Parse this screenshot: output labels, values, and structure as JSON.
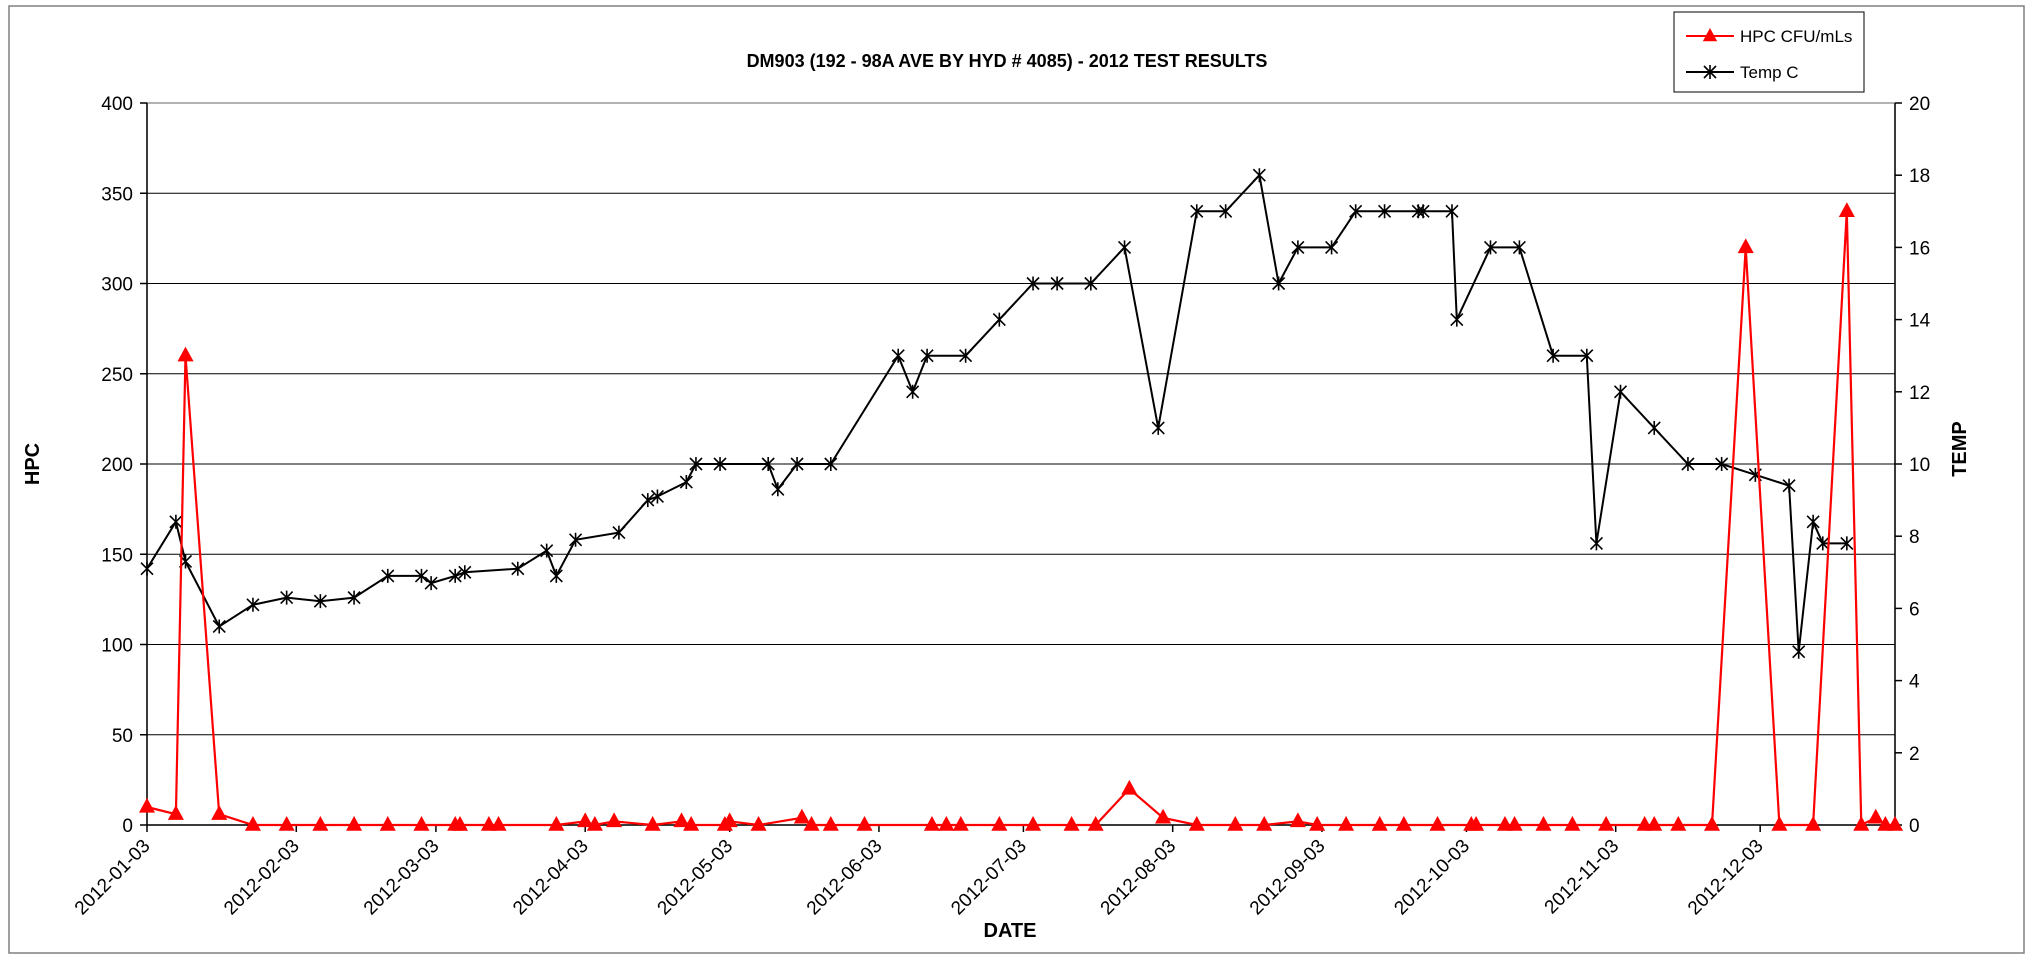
{
  "chart_data": {
    "type": "line",
    "title": "DM903 (192 - 98A AVE BY HYD # 4085) - 2012 TEST RESULTS",
    "xlabel": "DATE",
    "ylabel": "HPC",
    "y2label": "TEMP",
    "ylim": [
      0,
      400
    ],
    "y2lim": [
      0,
      20
    ],
    "yticks": [
      "0",
      "50",
      "100",
      "150",
      "200",
      "250",
      "300",
      "350",
      "400"
    ],
    "y2ticks": [
      "0",
      "2",
      "4",
      "6",
      "8",
      "10",
      "12",
      "14",
      "16",
      "18",
      "20"
    ],
    "xlim": [
      "2012-01-03",
      "2012-12-31"
    ],
    "xticks": [
      "2012-01-03",
      "2012-02-03",
      "2012-03-03",
      "2012-04-03",
      "2012-05-03",
      "2012-06-03",
      "2012-07-03",
      "2012-08-03",
      "2012-09-03",
      "2012-10-03",
      "2012-11-03",
      "2012-12-03"
    ],
    "grid": true,
    "legend_position": "top-right",
    "colors": {
      "hpc": "#ff0000",
      "temp": "#000000"
    },
    "series": [
      {
        "name": "HPC CFU/mLs",
        "axis": "left",
        "marker": "triangle",
        "color": "#ff0000",
        "points": [
          [
            "2012-01-03",
            10
          ],
          [
            "2012-01-09",
            6
          ],
          [
            "2012-01-11",
            260
          ],
          [
            "2012-01-18",
            6
          ],
          [
            "2012-01-25",
            0
          ],
          [
            "2012-02-01",
            0
          ],
          [
            "2012-02-08",
            0
          ],
          [
            "2012-02-15",
            0
          ],
          [
            "2012-02-22",
            0
          ],
          [
            "2012-02-29",
            0
          ],
          [
            "2012-03-07",
            0
          ],
          [
            "2012-03-08",
            0
          ],
          [
            "2012-03-14",
            0
          ],
          [
            "2012-03-16",
            0
          ],
          [
            "2012-03-28",
            0
          ],
          [
            "2012-04-03",
            2
          ],
          [
            "2012-04-05",
            0
          ],
          [
            "2012-04-09",
            2
          ],
          [
            "2012-04-17",
            0
          ],
          [
            "2012-04-23",
            2
          ],
          [
            "2012-04-25",
            0
          ],
          [
            "2012-05-02",
            0
          ],
          [
            "2012-05-03",
            2
          ],
          [
            "2012-05-09",
            0
          ],
          [
            "2012-05-18",
            4
          ],
          [
            "2012-05-20",
            0
          ],
          [
            "2012-05-24",
            0
          ],
          [
            "2012-05-31",
            0
          ],
          [
            "2012-06-14",
            0
          ],
          [
            "2012-06-17",
            0
          ],
          [
            "2012-06-20",
            0
          ],
          [
            "2012-06-28",
            0
          ],
          [
            "2012-07-05",
            0
          ],
          [
            "2012-07-13",
            0
          ],
          [
            "2012-07-18",
            0
          ],
          [
            "2012-07-25",
            20
          ],
          [
            "2012-08-01",
            4
          ],
          [
            "2012-08-08",
            0
          ],
          [
            "2012-08-16",
            0
          ],
          [
            "2012-08-22",
            0
          ],
          [
            "2012-08-29",
            2
          ],
          [
            "2012-09-02",
            0
          ],
          [
            "2012-09-08",
            0
          ],
          [
            "2012-09-15",
            0
          ],
          [
            "2012-09-20",
            0
          ],
          [
            "2012-09-27",
            0
          ],
          [
            "2012-10-04",
            0
          ],
          [
            "2012-10-05",
            0
          ],
          [
            "2012-10-11",
            0
          ],
          [
            "2012-10-13",
            0
          ],
          [
            "2012-10-19",
            0
          ],
          [
            "2012-10-25",
            0
          ],
          [
            "2012-11-01",
            0
          ],
          [
            "2012-11-09",
            0
          ],
          [
            "2012-11-11",
            0
          ],
          [
            "2012-11-16",
            0
          ],
          [
            "2012-11-23",
            0
          ],
          [
            "2012-11-30",
            320
          ],
          [
            "2012-12-07",
            0
          ],
          [
            "2012-12-14",
            0
          ],
          [
            "2012-12-21",
            340
          ],
          [
            "2012-12-24",
            0
          ],
          [
            "2012-12-27",
            4
          ],
          [
            "2012-12-29",
            0
          ],
          [
            "2012-12-31",
            0
          ]
        ]
      },
      {
        "name": "Temp C",
        "axis": "right",
        "marker": "asterisk",
        "color": "#000000",
        "points": [
          [
            "2012-01-03",
            7.1
          ],
          [
            "2012-01-09",
            8.4
          ],
          [
            "2012-01-11",
            7.3
          ],
          [
            "2012-01-18",
            5.5
          ],
          [
            "2012-01-25",
            6.1
          ],
          [
            "2012-02-01",
            6.3
          ],
          [
            "2012-02-08",
            6.2
          ],
          [
            "2012-02-15",
            6.3
          ],
          [
            "2012-02-22",
            6.9
          ],
          [
            "2012-02-29",
            6.9
          ],
          [
            "2012-03-02",
            6.7
          ],
          [
            "2012-03-07",
            6.9
          ],
          [
            "2012-03-09",
            7.0
          ],
          [
            "2012-03-20",
            7.1
          ],
          [
            "2012-03-26",
            7.6
          ],
          [
            "2012-03-28",
            6.9
          ],
          [
            "2012-04-01",
            7.9
          ],
          [
            "2012-04-10",
            8.1
          ],
          [
            "2012-04-16",
            9.0
          ],
          [
            "2012-04-18",
            9.1
          ],
          [
            "2012-04-24",
            9.5
          ],
          [
            "2012-04-26",
            10.0
          ],
          [
            "2012-05-01",
            10.0
          ],
          [
            "2012-05-11",
            10.0
          ],
          [
            "2012-05-13",
            9.3
          ],
          [
            "2012-05-17",
            10.0
          ],
          [
            "2012-05-24",
            10.0
          ],
          [
            "2012-06-07",
            13.0
          ],
          [
            "2012-06-10",
            12.0
          ],
          [
            "2012-06-13",
            13.0
          ],
          [
            "2012-06-21",
            13.0
          ],
          [
            "2012-06-28",
            14.0
          ],
          [
            "2012-07-05",
            15.0
          ],
          [
            "2012-07-10",
            15.0
          ],
          [
            "2012-07-17",
            15.0
          ],
          [
            "2012-07-24",
            16.0
          ],
          [
            "2012-07-31",
            11.0
          ],
          [
            "2012-08-08",
            17.0
          ],
          [
            "2012-08-14",
            17.0
          ],
          [
            "2012-08-21",
            18.0
          ],
          [
            "2012-08-25",
            15.0
          ],
          [
            "2012-08-29",
            16.0
          ],
          [
            "2012-09-05",
            16.0
          ],
          [
            "2012-09-10",
            17.0
          ],
          [
            "2012-09-16",
            17.0
          ],
          [
            "2012-09-23",
            17.0
          ],
          [
            "2012-09-24",
            17.0
          ],
          [
            "2012-09-30",
            17.0
          ],
          [
            "2012-10-01",
            14.0
          ],
          [
            "2012-10-08",
            16.0
          ],
          [
            "2012-10-14",
            16.0
          ],
          [
            "2012-10-21",
            13.0
          ],
          [
            "2012-10-28",
            13.0
          ],
          [
            "2012-10-30",
            7.8
          ],
          [
            "2012-11-04",
            12.0
          ],
          [
            "2012-11-11",
            11.0
          ],
          [
            "2012-11-18",
            10.0
          ],
          [
            "2012-11-25",
            10.0
          ],
          [
            "2012-12-02",
            9.7
          ],
          [
            "2012-12-09",
            9.4
          ],
          [
            "2012-12-11",
            4.8
          ],
          [
            "2012-12-14",
            8.4
          ],
          [
            "2012-12-16",
            7.8
          ],
          [
            "2012-12-21",
            7.8
          ]
        ]
      }
    ]
  }
}
